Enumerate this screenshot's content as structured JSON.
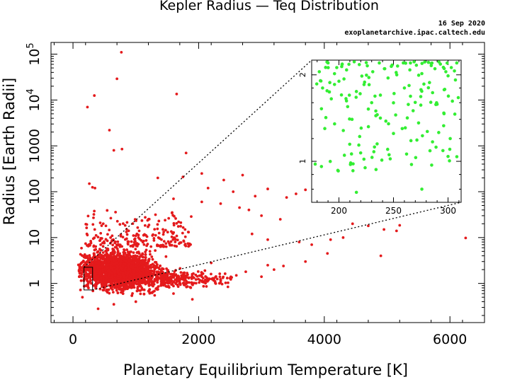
{
  "chart_data": [
    {
      "type": "scatter",
      "title": "Kepler Radius — Teq Distribution",
      "date": "16 Sep 2020",
      "source": "exoplanetarchive.ipac.caltech.edu",
      "xlabel": "Planetary Equilibrium Temperature [K]",
      "ylabel": "Radius [Earth Radii]",
      "xlim": [
        -350,
        6550
      ],
      "ylim": [
        0.14,
        180000
      ],
      "yscale": "log",
      "grid": false,
      "marker_color": "#e41a1c",
      "x_ticks": [
        0,
        2000,
        4000,
        6000
      ],
      "x_tick_labels": [
        "0",
        "2000",
        "4000",
        "6000"
      ],
      "y_ticks": [
        1,
        10,
        100,
        1000,
        10000,
        100000
      ],
      "y_tick_labels": [
        {
          "base": "1",
          "exp": ""
        },
        {
          "base": "10",
          "exp": ""
        },
        {
          "base": "100",
          "exp": ""
        },
        {
          "base": "1000",
          "exp": ""
        },
        {
          "base": "10",
          "exp": "4"
        },
        {
          "base": "10",
          "exp": "5"
        }
      ],
      "series": [
        {
          "points": [
            [
              770,
              110000
            ],
            [
              700,
              29000
            ],
            [
              1650,
              13500
            ],
            [
              340,
              12500
            ],
            [
              230,
              7000
            ],
            [
              580,
              2200
            ],
            [
              780,
              850
            ],
            [
              650,
              800
            ],
            [
              1800,
              700
            ],
            [
              260,
              150
            ],
            [
              350,
              120
            ],
            [
              310,
              125
            ],
            [
              2050,
              250
            ],
            [
              2700,
              230
            ],
            [
              1350,
              200
            ],
            [
              1750,
              210
            ],
            [
              2400,
              180
            ],
            [
              2150,
              120
            ],
            [
              2550,
              100
            ],
            [
              3100,
              115
            ],
            [
              3400,
              75
            ],
            [
              3550,
              90
            ],
            [
              3700,
              110
            ],
            [
              2900,
              80
            ],
            [
              2050,
              60
            ],
            [
              2350,
              55
            ],
            [
              2650,
              45
            ],
            [
              3000,
              30
            ],
            [
              3300,
              25
            ],
            [
              1600,
              70
            ],
            [
              2800,
              40
            ],
            [
              2850,
              12
            ],
            [
              3100,
              9
            ],
            [
              3600,
              8
            ],
            [
              3800,
              7
            ],
            [
              4100,
              9
            ],
            [
              4300,
              10
            ],
            [
              4450,
              20
            ],
            [
              4700,
              18
            ],
            [
              4950,
              15
            ],
            [
              5150,
              14
            ],
            [
              6250,
              9.8
            ],
            [
              5200,
              18.5
            ],
            [
              4900,
              4
            ],
            [
              4050,
              4.5
            ],
            [
              3700,
              3
            ],
            [
              3350,
              2.4
            ],
            [
              3200,
              2.0
            ],
            [
              3100,
              2.5
            ],
            [
              3000,
              1.4
            ],
            [
              2750,
              1.8
            ],
            [
              2600,
              1.5
            ],
            [
              2500,
              1.3
            ],
            [
              2350,
              1.2
            ],
            [
              2200,
              2.8
            ],
            [
              2100,
              1.9
            ],
            [
              150,
              0.5
            ],
            [
              400,
              0.28
            ],
            [
              650,
              0.35
            ],
            [
              1000,
              0.4
            ],
            [
              1300,
              0.55
            ],
            [
              1600,
              0.6
            ],
            [
              1900,
              0.45
            ]
          ]
        }
      ]
    },
    {
      "type": "scatter",
      "xlim": [
        175,
        312
      ],
      "ylim": [
        0.72,
        2.25
      ],
      "yscale": "log",
      "marker_color": "#33ee33",
      "x_ticks": [
        200,
        250,
        300
      ],
      "x_tick_labels": [
        "200",
        "250",
        "300"
      ],
      "y_ticks": [
        1,
        2
      ],
      "y_tick_labels": [
        "1",
        "2"
      ],
      "zoom_region": {
        "x": [
          175,
          312
        ],
        "y": [
          0.72,
          2.25
        ]
      },
      "series": [
        {
          "points": [
            [
              182,
              2.05
            ],
            [
              190,
              2.2
            ],
            [
              198,
              2.12
            ],
            [
              203,
              2.18
            ],
            [
              207,
              2.08
            ],
            [
              214,
              2.22
            ],
            [
              221,
              1.98
            ],
            [
              226,
              2.15
            ],
            [
              231,
              2.05
            ],
            [
              237,
              2.2
            ],
            [
              242,
              2.1
            ],
            [
              248,
              2.14
            ],
            [
              253,
              2.0
            ],
            [
              259,
              2.2
            ],
            [
              265,
              2.08
            ],
            [
              271,
              2.16
            ],
            [
              276,
              2.02
            ],
            [
              282,
              2.21
            ],
            [
              288,
              2.1
            ],
            [
              293,
              2.18
            ],
            [
              298,
              2.05
            ],
            [
              303,
              2.12
            ],
            [
              308,
              2.2
            ],
            [
              185,
              1.8
            ],
            [
              193,
              1.65
            ],
            [
              200,
              1.9
            ],
            [
              208,
              1.55
            ],
            [
              216,
              1.75
            ],
            [
              223,
              1.85
            ],
            [
              230,
              1.6
            ],
            [
              238,
              1.7
            ],
            [
              245,
              1.95
            ],
            [
              252,
              1.45
            ],
            [
              260,
              1.8
            ],
            [
              268,
              1.5
            ],
            [
              275,
              1.68
            ],
            [
              283,
              1.88
            ],
            [
              290,
              1.58
            ],
            [
              297,
              1.78
            ],
            [
              304,
              1.62
            ],
            [
              188,
              1.42
            ],
            [
              196,
              1.35
            ],
            [
              204,
              1.28
            ],
            [
              212,
              1.4
            ],
            [
              219,
              1.22
            ],
            [
              227,
              1.32
            ],
            [
              235,
              1.15
            ],
            [
              243,
              1.38
            ],
            [
              250,
              1.25
            ],
            [
              258,
              1.3
            ],
            [
              266,
              1.18
            ],
            [
              273,
              1.36
            ],
            [
              281,
              1.27
            ],
            [
              289,
              1.12
            ],
            [
              296,
              1.33
            ],
            [
              302,
              1.2
            ],
            [
              205,
              1.05
            ],
            [
              213,
              0.98
            ],
            [
              224,
              0.95
            ],
            [
              232,
              1.08
            ],
            [
              247,
              1.02
            ],
            [
              262,
              1.06
            ],
            [
              285,
              0.97
            ],
            [
              300,
              1.04
            ],
            [
              216,
              0.78
            ],
            [
              276,
              0.8
            ],
            [
              199,
              0.93
            ]
          ]
        }
      ]
    }
  ]
}
